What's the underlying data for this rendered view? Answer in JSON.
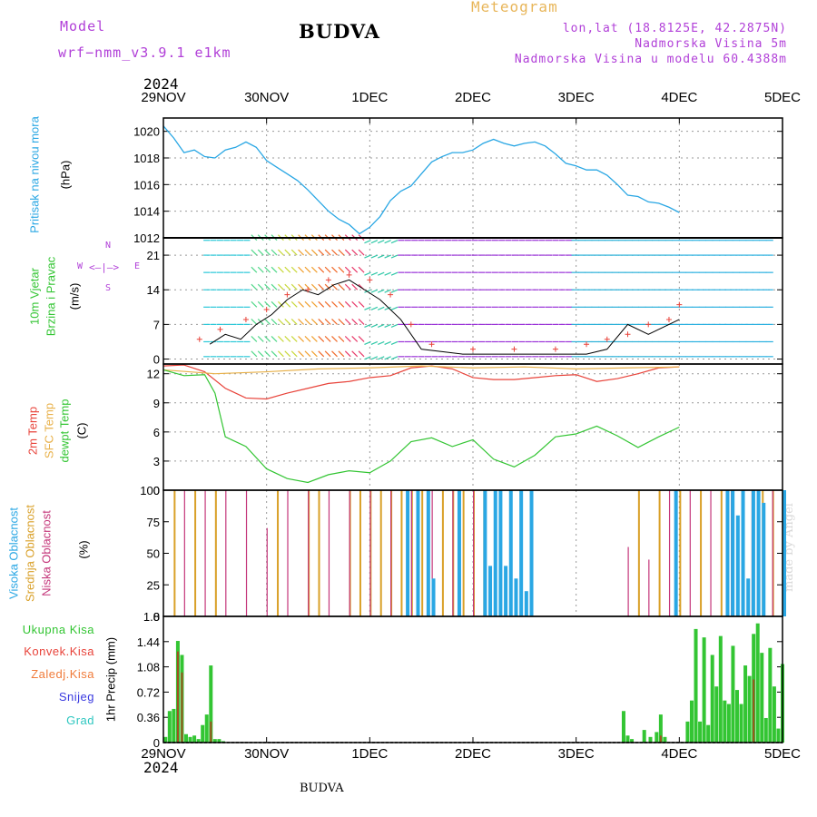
{
  "header": {
    "model_label": "Model",
    "model_name": "wrf−nmm_v3.9.1  e1km",
    "station_title": "BUDVA",
    "app_title": "Meteogram",
    "coords": "lon,lat (18.8125E, 42.2875N)",
    "elevation": "Nadmorska Visina 5m",
    "model_elevation": "Nadmorska Visina u modelu 60.4388m",
    "year_top": "2024",
    "year_bottom": "2024",
    "footer_station": "BUDVA",
    "watermark": "made by Angel"
  },
  "colors": {
    "pressure": "#2aa7e4",
    "t2m": "#e8433a",
    "tsfc": "#e8b14a",
    "dewpoint": "#33c533",
    "cloud_high": "#2aa7e4",
    "cloud_mid": "#d9a028",
    "cloud_low": "#c4367a",
    "precip_total": "#33c533",
    "precip_conv": "#e8433a",
    "purple": "#b140d8",
    "wind_speed": "#000000",
    "wind_gust": "#e8433a"
  },
  "panels": {
    "pressure": {
      "label": "Pritisak na nivou mora",
      "unit": "(hPa)"
    },
    "wind": {
      "label_1": "10m Vjetar",
      "label_2": "Brzina i Pravac",
      "unit": "(m/s)",
      "compass_n": "N",
      "compass_s": "S",
      "compass_w": "W",
      "compass_e": "E"
    },
    "temp": {
      "label_t2m": "2m Temp",
      "label_tsfc": "SFC Temp",
      "label_dew": "dewpt Temp",
      "unit": "(C)"
    },
    "cloud": {
      "label_high": "Visoka Oblacnost",
      "label_mid": "Srednja Oblacnost",
      "label_low": "Niska Oblacnost",
      "unit": "(%)"
    },
    "precip": {
      "label_total": "Ukupna Kisa",
      "label_conv": "Konvek.Kisa",
      "label_frz": "Zaledj.Kisa",
      "label_snow": "Snijeg",
      "label_hail": "Grad",
      "unit": "1hr Precip (mm)"
    }
  },
  "chart_data": [
    {
      "type": "line",
      "name": "Pritisak na nivou mora",
      "x_ticks": [
        "29NOV",
        "30NOV",
        "1DEC",
        "2DEC",
        "3DEC",
        "4DEC",
        "5DEC"
      ],
      "x_range_days": [
        0,
        6
      ],
      "ylim": [
        1012,
        1021
      ],
      "y_ticks": [
        1012,
        1014,
        1016,
        1018,
        1020
      ],
      "grid": true,
      "series": [
        {
          "x": [
            0,
            0.1,
            0.2,
            0.3,
            0.4,
            0.5,
            0.6,
            0.7,
            0.8,
            0.9,
            1.0,
            1.1,
            1.2,
            1.3,
            1.4,
            1.5,
            1.6,
            1.7,
            1.8,
            1.9,
            2.0,
            2.1,
            2.2,
            2.3,
            2.4,
            2.5,
            2.6,
            2.7,
            2.8,
            2.9,
            3.0,
            3.1,
            3.2,
            3.3,
            3.4,
            3.5,
            3.6,
            3.7,
            3.8,
            3.9,
            4.0,
            4.1,
            4.2,
            4.3,
            4.4,
            4.5,
            4.6,
            4.7,
            4.8,
            4.9,
            5.0
          ],
          "y": [
            1020.4,
            1019.5,
            1018.4,
            1018.6,
            1018.1,
            1018.0,
            1018.6,
            1018.8,
            1019.2,
            1018.8,
            1017.8,
            1017.3,
            1016.8,
            1016.3,
            1015.6,
            1014.8,
            1014.0,
            1013.4,
            1013.0,
            1012.3,
            1012.8,
            1013.6,
            1014.8,
            1015.5,
            1015.9,
            1016.8,
            1017.7,
            1018.1,
            1018.4,
            1018.4,
            1018.6,
            1019.1,
            1019.4,
            1019.1,
            1018.9,
            1019.1,
            1019.2,
            1018.9,
            1018.3,
            1017.6,
            1017.4,
            1017.1,
            1017.1,
            1016.7,
            1016.0,
            1015.2,
            1015.1,
            1014.7,
            1014.6,
            1014.3,
            1013.9
          ]
        }
      ]
    },
    {
      "type": "line",
      "name": "10m Vjetar Brzina i Pravac",
      "ylim": [
        -1,
        24.5
      ],
      "y_ticks": [
        0,
        7,
        14,
        21
      ],
      "grid": true,
      "series": [
        {
          "name": "speed",
          "x": [
            0.45,
            0.6,
            0.75,
            0.9,
            1.05,
            1.2,
            1.35,
            1.5,
            1.65,
            1.8,
            1.95,
            2.1,
            2.3,
            2.5,
            2.9,
            3.3,
            3.7,
            4.1,
            4.3,
            4.5,
            4.7,
            5.0
          ],
          "y": [
            3,
            5,
            4,
            7,
            9,
            12,
            14,
            13,
            15,
            16,
            14,
            12,
            8,
            2,
            1,
            1,
            1,
            1,
            2,
            7,
            5,
            8
          ]
        },
        {
          "name": "gust",
          "x": [
            0.35,
            0.55,
            0.8,
            1.0,
            1.2,
            1.4,
            1.6,
            1.8,
            2.0,
            2.2,
            2.4,
            2.6,
            3.0,
            3.4,
            3.8,
            4.1,
            4.3,
            4.5,
            4.7,
            4.9,
            5.0
          ],
          "y": [
            4,
            6,
            8,
            10,
            13,
            14,
            16,
            17,
            16,
            13,
            7,
            3,
            2,
            2,
            2,
            3,
            4,
            5,
            7,
            8,
            11
          ]
        }
      ]
    },
    {
      "type": "line",
      "name": "Temperatura",
      "ylim": [
        0,
        13
      ],
      "y_ticks": [
        0,
        3,
        6,
        9,
        12
      ],
      "grid": true,
      "series": [
        {
          "name": "t2m",
          "x": [
            0,
            0.2,
            0.4,
            0.6,
            0.8,
            1.0,
            1.2,
            1.4,
            1.6,
            1.8,
            2.0,
            2.2,
            2.4,
            2.6,
            2.8,
            3.0,
            3.2,
            3.4,
            3.6,
            3.8,
            4.0,
            4.2,
            4.4,
            4.6,
            4.8,
            5.0
          ],
          "y": [
            12.8,
            12.9,
            12.2,
            10.5,
            9.5,
            9.4,
            10.0,
            10.5,
            11.0,
            11.2,
            11.6,
            11.8,
            12.6,
            12.8,
            12.5,
            11.6,
            11.4,
            11.4,
            11.6,
            11.8,
            11.9,
            11.2,
            11.5,
            12.0,
            12.6,
            12.7
          ]
        },
        {
          "name": "tsfc",
          "x": [
            0,
            0.5,
            1.0,
            1.5,
            2.0,
            2.5,
            3.0,
            3.5,
            4.0,
            4.5,
            5.0
          ],
          "y": [
            12.4,
            12.0,
            12.2,
            12.5,
            12.6,
            12.8,
            12.6,
            12.7,
            12.5,
            12.6,
            12.7
          ]
        },
        {
          "name": "dewpt",
          "x": [
            0,
            0.2,
            0.4,
            0.5,
            0.6,
            0.8,
            1.0,
            1.2,
            1.4,
            1.6,
            1.8,
            2.0,
            2.2,
            2.4,
            2.6,
            2.8,
            3.0,
            3.2,
            3.4,
            3.6,
            3.8,
            4.0,
            4.2,
            4.4,
            4.6,
            4.8,
            5.0
          ],
          "y": [
            12.4,
            11.8,
            11.9,
            10.0,
            5.5,
            4.5,
            2.2,
            1.2,
            0.8,
            1.6,
            2.0,
            1.8,
            3.0,
            5.0,
            5.4,
            4.5,
            5.2,
            3.2,
            2.4,
            3.6,
            5.5,
            5.8,
            6.6,
            5.6,
            4.4,
            5.5,
            6.5
          ]
        }
      ]
    },
    {
      "type": "bar",
      "name": "Oblacnost",
      "ylim": [
        0,
        100
      ],
      "y_ticks": [
        0,
        25,
        50,
        75,
        100
      ],
      "series": [
        {
          "name": "high",
          "x": [
            2.35,
            2.45,
            2.55,
            2.6,
            2.85,
            3.1,
            3.15,
            3.2,
            3.25,
            3.3,
            3.35,
            3.4,
            3.45,
            3.5,
            3.55,
            4.95,
            5.45,
            5.5,
            5.55,
            5.6,
            5.65,
            5.7,
            5.75,
            5.8,
            6.0
          ],
          "y": [
            100,
            100,
            100,
            30,
            100,
            100,
            40,
            100,
            100,
            40,
            100,
            30,
            100,
            20,
            100,
            100,
            100,
            100,
            80,
            100,
            30,
            100,
            100,
            90,
            100
          ]
        },
        {
          "name": "mid",
          "x": [
            0.1,
            0.3,
            0.5,
            1.1,
            1.4,
            1.5,
            1.8,
            1.9,
            2.0,
            2.1,
            2.2,
            2.3,
            2.4,
            2.5,
            2.7,
            2.8,
            2.9,
            3.0,
            3.1,
            4.6,
            4.8,
            5.0,
            5.2,
            5.4,
            5.5,
            5.6,
            5.7,
            5.8,
            5.9
          ],
          "y": [
            100,
            100,
            100,
            100,
            100,
            100,
            100,
            100,
            100,
            100,
            100,
            100,
            100,
            100,
            100,
            100,
            100,
            100,
            100,
            100,
            100,
            100,
            100,
            100,
            100,
            100,
            100,
            100,
            100
          ]
        },
        {
          "name": "low",
          "x": [
            0.2,
            0.4,
            0.6,
            0.8,
            1.0,
            1.2,
            1.4,
            1.6,
            1.8,
            2.0,
            2.2,
            2.4,
            2.6,
            2.8,
            3.0,
            4.5,
            4.7,
            4.9,
            5.1,
            5.3,
            5.5,
            5.7,
            5.9
          ],
          "y": [
            100,
            100,
            100,
            100,
            70,
            100,
            100,
            100,
            100,
            100,
            100,
            100,
            100,
            100,
            100,
            55,
            45,
            100,
            100,
            100,
            100,
            100,
            100
          ]
        }
      ]
    },
    {
      "type": "bar",
      "name": "1hr Precip",
      "ylim": [
        0,
        1.8
      ],
      "y_ticks": [
        0,
        0.36,
        0.72,
        1.08,
        1.44,
        1.8
      ],
      "series": [
        {
          "name": "total",
          "x": [
            0.02,
            0.06,
            0.1,
            0.14,
            0.18,
            0.22,
            0.26,
            0.3,
            0.34,
            0.38,
            0.42,
            0.46,
            0.5,
            0.54,
            0.58,
            4.46,
            4.5,
            4.54,
            4.66,
            4.72,
            4.78,
            4.82,
            4.86,
            5.08,
            5.12,
            5.16,
            5.2,
            5.24,
            5.28,
            5.32,
            5.36,
            5.4,
            5.44,
            5.48,
            5.52,
            5.56,
            5.6,
            5.64,
            5.68,
            5.72,
            5.76,
            5.8,
            5.84,
            5.88,
            5.92,
            5.96,
            6.0
          ],
          "y": [
            0.08,
            0.45,
            0.48,
            1.45,
            1.25,
            0.12,
            0.08,
            0.1,
            0.05,
            0.25,
            0.4,
            1.1,
            0.05,
            0.05,
            0.02,
            0.45,
            0.1,
            0.05,
            0.18,
            0.08,
            0.15,
            0.4,
            0.08,
            0.3,
            0.6,
            1.62,
            0.3,
            1.5,
            0.25,
            1.25,
            0.8,
            1.52,
            0.6,
            0.55,
            1.38,
            0.75,
            0.55,
            1.1,
            0.95,
            1.55,
            1.7,
            1.28,
            0.35,
            1.35,
            0.8,
            0.2,
            1.12
          ]
        },
        {
          "name": "conv",
          "x": [
            0.14,
            0.18,
            0.46,
            4.82,
            5.72
          ],
          "y": [
            1.3,
            1.0,
            0.3,
            0.1,
            0.9
          ]
        }
      ]
    }
  ]
}
